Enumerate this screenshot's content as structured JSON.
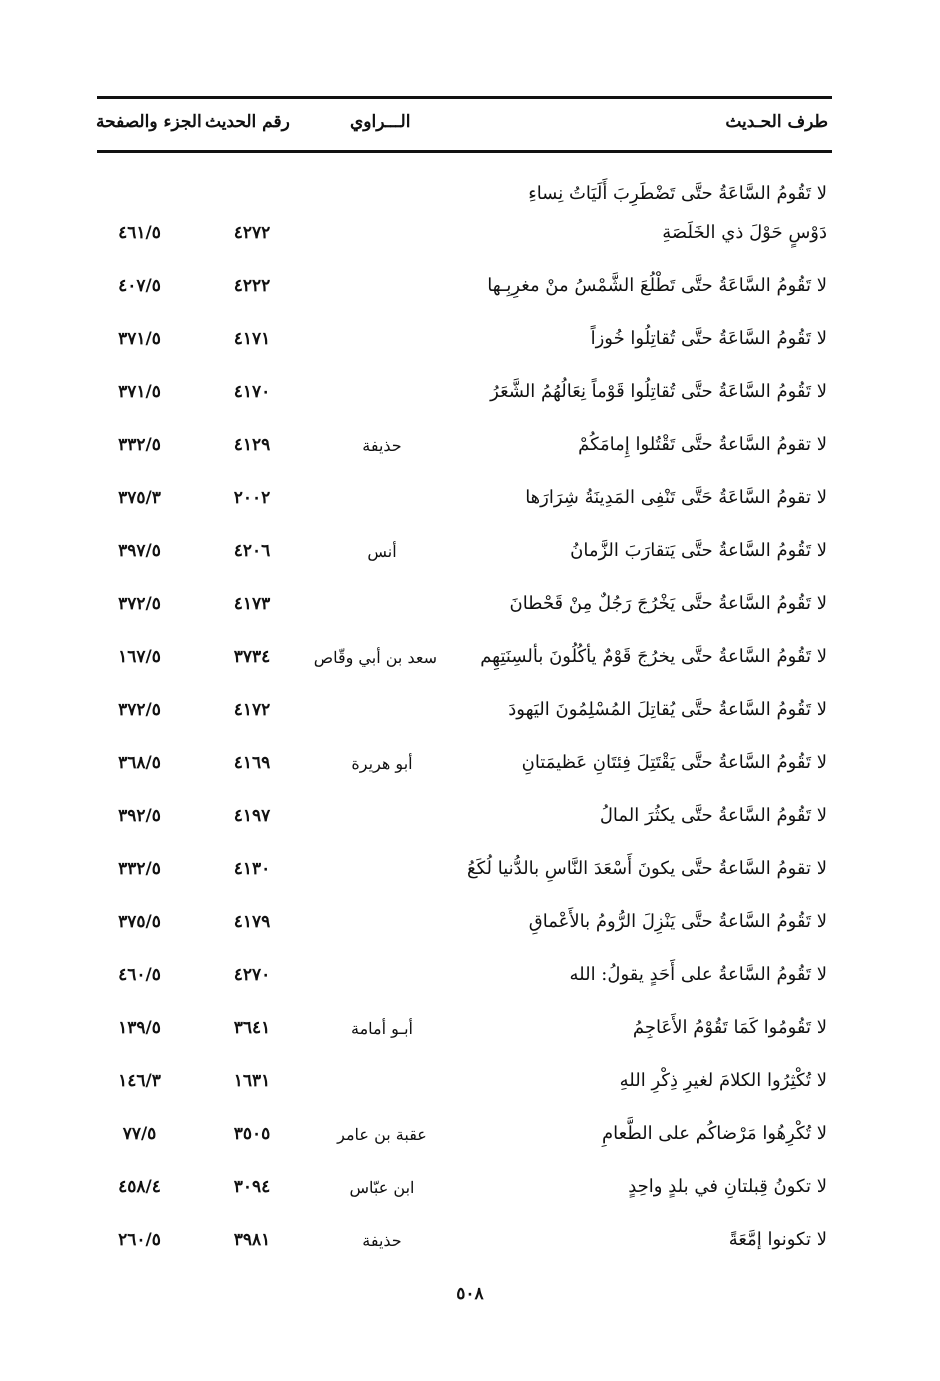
{
  "header": {
    "col_text": "طرف الحـديث",
    "col_narrator": "الـــراوي",
    "col_number": "رقم الحديث",
    "col_page": "الجزء والصفحة"
  },
  "rows": [
    {
      "text": [
        "لا تَقُومُ السَّاعَةُ حتَّى تَضْطَرِبَ أَلَيَاتُ نِساءِ",
        "دَوْسٍ حَوْلَ ذي الخَلَصَةِ"
      ],
      "narrator": "",
      "number": "٤٢٧٢",
      "page": "٤٦١/٥"
    },
    {
      "text": [
        "لا تَقُومُ السَّاعَةُ حتَّى تَطْلُعَ الشَّمْسُ منْ مغرِبِـها"
      ],
      "narrator": "",
      "number": "٤٢٢٢",
      "page": "٤٠٧/٥"
    },
    {
      "text": [
        "لا تَقُومُ السَّاعَةُ حتَّى تُقاتِلُوا خُوزاً"
      ],
      "narrator": "",
      "number": "٤١٧١",
      "page": "٣٧١/٥"
    },
    {
      "text": [
        "لا تَقُومُ السَّاعَةُ حتَّى تُقاتِلُوا قَوْماً نِعَالُهُمُ الشَّعَرُ"
      ],
      "narrator": "",
      "number": "٤١٧٠",
      "page": "٣٧١/٥"
    },
    {
      "text": [
        "لا تقومُ السَّاعةُ حتَّى تَقْتُلوا إِمامَكُمْ"
      ],
      "narrator": "حذيفة",
      "number": "٤١٢٩",
      "page": "٣٣٢/٥"
    },
    {
      "text": [
        "لا تقومُ السَّاعَةُ حَتَّى تَنْفِى المَدِينَةُ شِرَارَها"
      ],
      "narrator": "",
      "number": "٢٠٠٢",
      "page": "٣٧٥/٣"
    },
    {
      "text": [
        "لا تَقُومُ السَّاعةُ حتَّى يَتقارَبَ الزَّمانُ"
      ],
      "narrator": "أنس",
      "number": "٤٢٠٦",
      "page": "٣٩٧/٥"
    },
    {
      "text": [
        "لا تَقُومُ السَّاعةُ حتَّى يَخْرُجَ رَجُلٌ مِنْ قَحْطانَ"
      ],
      "narrator": "",
      "number": "٤١٧٣",
      "page": "٣٧٢/٥"
    },
    {
      "text": [
        "لا تَقُومُ السَّاعةُ حتَّى يخرُجَ قَوْمٌ يأكُلُونَ بألسِنَتِهِم"
      ],
      "narrator": "سعد بن أبي وقّاص",
      "number": "٣٧٣٤",
      "page": "١٦٧/٥"
    },
    {
      "text": [
        "لا تَقُومُ السَّاعةُ حتَّى يُقاتِلَ المُسْلِمُونَ اليَهودَ"
      ],
      "narrator": "",
      "number": "٤١٧٢",
      "page": "٣٧٢/٥"
    },
    {
      "text": [
        "لا تَقُومُ السَّاعةُ حتَّى يَقْتَتِلَ فِئتَانِ عَظيمَتانِ"
      ],
      "narrator": "أبو هريرة",
      "number": "٤١٦٩",
      "page": "٣٦٨/٥"
    },
    {
      "text": [
        "لا تَقُومُ السَّاعةُ حتَّى يكثُرَ المالُ"
      ],
      "narrator": "",
      "number": "٤١٩٧",
      "page": "٣٩٢/٥"
    },
    {
      "text": [
        "لا تقومُ السَّاعةُ حتَّى يكونَ أَسْعَدَ النَّاسِ بالدُّنيا لُكَعُ"
      ],
      "narrator": "",
      "number": "٤١٣٠",
      "page": "٣٣٢/٥"
    },
    {
      "text": [
        "لا تَقُومُ السَّاعةُ حتَّى يَنْزِلَ الرُّومُ بالأَعْماقِ"
      ],
      "narrator": "",
      "number": "٤١٧٩",
      "page": "٣٧٥/٥"
    },
    {
      "text": [
        "لا تَقُومُ السَّاعةُ على أَحَدٍ يقولُ: الله"
      ],
      "narrator": "",
      "number": "٤٢٧٠",
      "page": "٤٦٠/٥"
    },
    {
      "text": [
        "لا تَقُومُوا كَمَا تَقُوْمُ الأَعَاجِمُ"
      ],
      "narrator": "أبـو أمامة",
      "number": "٣٦٤١",
      "page": "١٣٩/٥"
    },
    {
      "text": [
        "لا تُكْثِرُوا الكلامَ لغيرِ ذِكْرِ اللهِ"
      ],
      "narrator": "",
      "number": "١٦٣١",
      "page": "١٤٦/٣"
    },
    {
      "text": [
        "لا تُكْرِهُوا مَرْضاكُم على الطَّعامِ"
      ],
      "narrator": "عقبة بن عامر",
      "number": "٣٥٠٥",
      "page": "٧٧/٥"
    },
    {
      "text": [
        "لا تكونُ قِبلتانِ في بلدٍ واحِدٍ"
      ],
      "narrator": "ابن عبّاس",
      "number": "٣٠٩٤",
      "page": "٤٥٨/٤"
    },
    {
      "text": [
        "لا تكونوا إمَّعَةً"
      ],
      "narrator": "حذيفة",
      "number": "٣٩٨١",
      "page": "٢٦٠/٥"
    }
  ],
  "page_number": "٥٠٨"
}
